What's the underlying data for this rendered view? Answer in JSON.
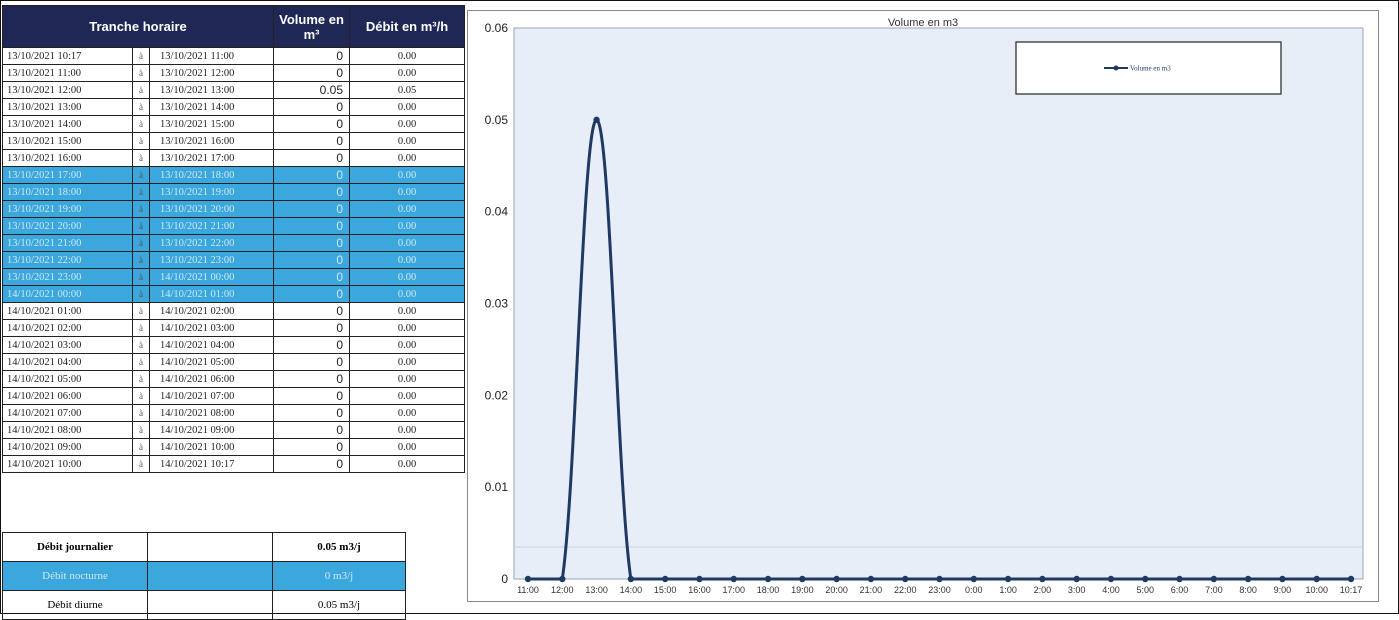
{
  "table": {
    "headers": {
      "tranche": "Tranche horaire",
      "volume": "Volume en m³",
      "debit": "Débit en m³/h"
    },
    "rows": [
      {
        "from": "13/10/2021 10:17",
        "a": "à",
        "to": "13/10/2021 11:00",
        "vol": "0",
        "deb": "0.00",
        "hl": false
      },
      {
        "from": "13/10/2021 11:00",
        "a": "à",
        "to": "13/10/2021 12:00",
        "vol": "0",
        "deb": "0.00",
        "hl": false
      },
      {
        "from": "13/10/2021 12:00",
        "a": "à",
        "to": "13/10/2021 13:00",
        "vol": "0.05",
        "deb": "0.05",
        "hl": false
      },
      {
        "from": "13/10/2021 13:00",
        "a": "à",
        "to": "13/10/2021 14:00",
        "vol": "0",
        "deb": "0.00",
        "hl": false
      },
      {
        "from": "13/10/2021 14:00",
        "a": "à",
        "to": "13/10/2021 15:00",
        "vol": "0",
        "deb": "0.00",
        "hl": false
      },
      {
        "from": "13/10/2021 15:00",
        "a": "à",
        "to": "13/10/2021 16:00",
        "vol": "0",
        "deb": "0.00",
        "hl": false
      },
      {
        "from": "13/10/2021 16:00",
        "a": "à",
        "to": "13/10/2021 17:00",
        "vol": "0",
        "deb": "0.00",
        "hl": false
      },
      {
        "from": "13/10/2021 17:00",
        "a": "à",
        "to": "13/10/2021 18:00",
        "vol": "0",
        "deb": "0.00",
        "hl": true
      },
      {
        "from": "13/10/2021 18:00",
        "a": "à",
        "to": "13/10/2021 19:00",
        "vol": "0",
        "deb": "0.00",
        "hl": true
      },
      {
        "from": "13/10/2021 19:00",
        "a": "à",
        "to": "13/10/2021 20:00",
        "vol": "0",
        "deb": "0.00",
        "hl": true
      },
      {
        "from": "13/10/2021 20:00",
        "a": "à",
        "to": "13/10/2021 21:00",
        "vol": "0",
        "deb": "0.00",
        "hl": true
      },
      {
        "from": "13/10/2021 21:00",
        "a": "à",
        "to": "13/10/2021 22:00",
        "vol": "0",
        "deb": "0.00",
        "hl": true
      },
      {
        "from": "13/10/2021 22:00",
        "a": "à",
        "to": "13/10/2021 23:00",
        "vol": "0",
        "deb": "0.00",
        "hl": true
      },
      {
        "from": "13/10/2021 23:00",
        "a": "à",
        "to": "14/10/2021 00:00",
        "vol": "0",
        "deb": "0.00",
        "hl": true
      },
      {
        "from": "14/10/2021 00:00",
        "a": "à",
        "to": "14/10/2021 01:00",
        "vol": "0",
        "deb": "0.00",
        "hl": true
      },
      {
        "from": "14/10/2021 01:00",
        "a": "à",
        "to": "14/10/2021 02:00",
        "vol": "0",
        "deb": "0.00",
        "hl": false
      },
      {
        "from": "14/10/2021 02:00",
        "a": "à",
        "to": "14/10/2021 03:00",
        "vol": "0",
        "deb": "0.00",
        "hl": false
      },
      {
        "from": "14/10/2021 03:00",
        "a": "à",
        "to": "14/10/2021 04:00",
        "vol": "0",
        "deb": "0.00",
        "hl": false
      },
      {
        "from": "14/10/2021 04:00",
        "a": "à",
        "to": "14/10/2021 05:00",
        "vol": "0",
        "deb": "0.00",
        "hl": false
      },
      {
        "from": "14/10/2021 05:00",
        "a": "à",
        "to": "14/10/2021 06:00",
        "vol": "0",
        "deb": "0.00",
        "hl": false
      },
      {
        "from": "14/10/2021 06:00",
        "a": "à",
        "to": "14/10/2021 07:00",
        "vol": "0",
        "deb": "0.00",
        "hl": false
      },
      {
        "from": "14/10/2021 07:00",
        "a": "à",
        "to": "14/10/2021 08:00",
        "vol": "0",
        "deb": "0.00",
        "hl": false
      },
      {
        "from": "14/10/2021 08:00",
        "a": "à",
        "to": "14/10/2021 09:00",
        "vol": "0",
        "deb": "0.00",
        "hl": false
      },
      {
        "from": "14/10/2021 09:00",
        "a": "à",
        "to": "14/10/2021 10:00",
        "vol": "0",
        "deb": "0.00",
        "hl": false
      },
      {
        "from": "14/10/2021 10:00",
        "a": "à",
        "to": "14/10/2021 10:17",
        "vol": "0",
        "deb": "0.00",
        "hl": false
      }
    ]
  },
  "summary": {
    "journalier_label": "Débit journalier",
    "journalier_value": "0.05 m3/j",
    "nocturne_label": "Débit nocturne",
    "nocturne_value": "0 m3/j",
    "diurne_label": "Débit diurne",
    "diurne_value": "0.05 m3/j"
  },
  "colors": {
    "header_bg": "#1f2855",
    "highlight": "#3ba7dc",
    "series": "#1e3a63",
    "plot_bg": "#e8eef7"
  },
  "chart_data": {
    "type": "line",
    "title": "Volume en m3",
    "xlabel": "",
    "ylabel": "",
    "ylim": [
      0,
      0.06
    ],
    "yticks": [
      "0",
      "0.01",
      "0.02",
      "0.03",
      "0.04",
      "0.05",
      "0.06"
    ],
    "categories": [
      "11:00",
      "12:00",
      "13:00",
      "14:00",
      "15:00",
      "16:00",
      "17:00",
      "18:00",
      "19:00",
      "20:00",
      "21:00",
      "22:00",
      "23:00",
      "0:00",
      "1:00",
      "2:00",
      "3:00",
      "4:00",
      "5:00",
      "6:00",
      "7:00",
      "8:00",
      "9:00",
      "10:00",
      "10:17"
    ],
    "series": [
      {
        "name": "Volume en m3",
        "values": [
          0,
          0,
          0.05,
          0,
          0,
          0,
          0,
          0,
          0,
          0,
          0,
          0,
          0,
          0,
          0,
          0,
          0,
          0,
          0,
          0,
          0,
          0,
          0,
          0,
          0
        ]
      }
    ],
    "legend": "top-right",
    "grid": false
  }
}
